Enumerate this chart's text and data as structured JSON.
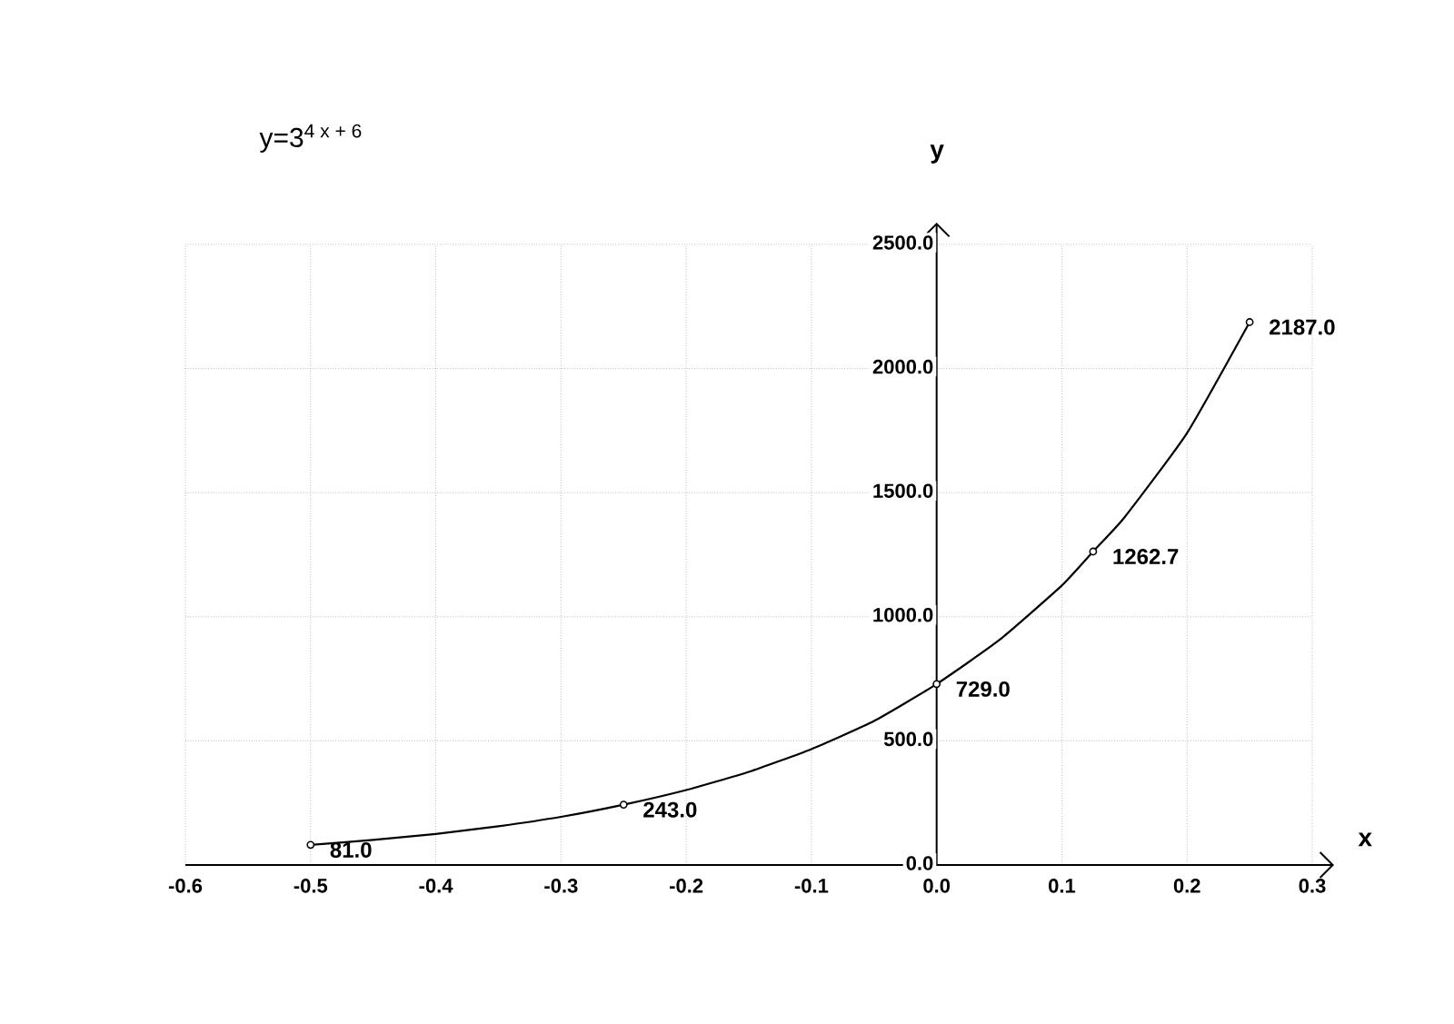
{
  "chart_data": {
    "type": "line",
    "title": "y=3$^{4  x + 6}$",
    "xlabel": "x",
    "ylabel": "y",
    "xlim": [
      -0.6,
      0.3
    ],
    "ylim": [
      0,
      2500
    ],
    "xticks": [
      {
        "value": -0.6,
        "label": "-0.6"
      },
      {
        "value": -0.5,
        "label": "-0.5"
      },
      {
        "value": -0.4,
        "label": "-0.4"
      },
      {
        "value": -0.3,
        "label": "-0.3"
      },
      {
        "value": -0.2,
        "label": "-0.2"
      },
      {
        "value": -0.1,
        "label": "-0.1"
      },
      {
        "value": 0,
        "label": "0.0"
      },
      {
        "value": 0.1,
        "label": "0.1"
      },
      {
        "value": 0.2,
        "label": "0.2"
      },
      {
        "value": 0.3,
        "label": "0.3"
      }
    ],
    "yticks": [
      {
        "value": 0,
        "label": "0.0"
      },
      {
        "value": 500,
        "label": "500.0"
      },
      {
        "value": 1000,
        "label": "1000.0"
      },
      {
        "value": 1500,
        "label": "1500.0"
      },
      {
        "value": 2000,
        "label": "2000.0"
      },
      {
        "value": 2500,
        "label": "2500.0"
      }
    ],
    "grid": true,
    "series": [
      {
        "color": "#000000",
        "x": [
          -0.5,
          -0.45,
          -0.4,
          -0.35,
          -0.3,
          -0.25,
          -0.2,
          -0.15,
          -0.1,
          -0.05,
          0,
          0.05,
          0.1,
          0.125,
          0.15,
          0.2,
          0.25
        ],
        "values": [
          81,
          101,
          125,
          156,
          194,
          243,
          302,
          375,
          467,
          580,
          729,
          906,
          1126,
          1263,
          1400,
          1740,
          2187
        ]
      },
      {
        "type": "scatter",
        "color": "#000000",
        "x": [
          -0.5,
          -0.25,
          0,
          0.125,
          0.25
        ],
        "values": [
          81,
          243,
          729,
          1262.7,
          2187
        ],
        "value_labels": [
          "81.0",
          "243.0",
          "729.0",
          "1262.7",
          "2187.0"
        ]
      }
    ]
  }
}
